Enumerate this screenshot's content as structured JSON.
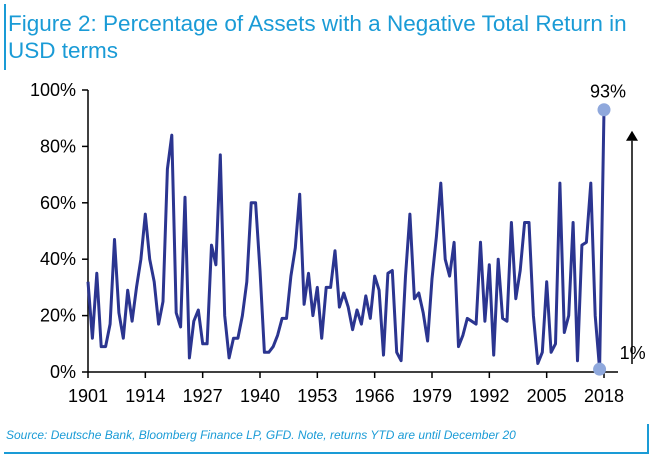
{
  "title": "Figure 2: Percentage of Assets with a Negative Total Return in USD terms",
  "source": "Source: Deutsche Bank, Bloomberg Finance LP, GFD. Note, returns YTD are until December 20",
  "colors": {
    "accent": "#1a9bd6",
    "line": "#2b3590",
    "marker": "#8fa8dc"
  },
  "chart_data": {
    "type": "line",
    "title": "Figure 2: Percentage of Assets with a Negative Total Return in USD terms",
    "xlabel": "",
    "ylabel": "",
    "xlim": [
      1901,
      2018
    ],
    "ylim": [
      0,
      100
    ],
    "x_ticks": [
      1901,
      1914,
      1927,
      1940,
      1953,
      1966,
      1979,
      1992,
      2005,
      2018
    ],
    "x_tick_labels": [
      "1901",
      "1914",
      "1927",
      "1940",
      "1953",
      "1966",
      "1979",
      "1992",
      "2005",
      "2018"
    ],
    "y_ticks": [
      0,
      20,
      40,
      60,
      80,
      100
    ],
    "y_tick_labels": [
      "0%",
      "20%",
      "40%",
      "60%",
      "80%",
      "100%"
    ],
    "grid": false,
    "series": [
      {
        "name": "",
        "x": [
          1901,
          1902,
          1903,
          1904,
          1905,
          1906,
          1907,
          1908,
          1909,
          1910,
          1911,
          1912,
          1913,
          1914,
          1915,
          1916,
          1917,
          1918,
          1919,
          1920,
          1921,
          1922,
          1923,
          1924,
          1925,
          1926,
          1927,
          1928,
          1929,
          1930,
          1931,
          1932,
          1933,
          1934,
          1935,
          1936,
          1937,
          1938,
          1939,
          1940,
          1941,
          1942,
          1943,
          1944,
          1945,
          1946,
          1947,
          1948,
          1949,
          1950,
          1951,
          1952,
          1953,
          1954,
          1955,
          1956,
          1957,
          1958,
          1959,
          1960,
          1961,
          1962,
          1963,
          1964,
          1965,
          1966,
          1967,
          1968,
          1969,
          1970,
          1971,
          1972,
          1973,
          1974,
          1975,
          1976,
          1977,
          1978,
          1979,
          1980,
          1981,
          1982,
          1983,
          1984,
          1985,
          1986,
          1987,
          1988,
          1989,
          1990,
          1991,
          1992,
          1993,
          1994,
          1995,
          1996,
          1997,
          1998,
          1999,
          2000,
          2001,
          2002,
          2003,
          2004,
          2005,
          2006,
          2007,
          2008,
          2009,
          2010,
          2011,
          2012,
          2013,
          2014,
          2015,
          2016,
          2017,
          2018
        ],
        "values": [
          32,
          12,
          35,
          9,
          9,
          17,
          47,
          21,
          12,
          29,
          18,
          30,
          40,
          56,
          40,
          32,
          17,
          25,
          72,
          84,
          21,
          16,
          62,
          5,
          18,
          22,
          10,
          10,
          45,
          38,
          77,
          20,
          5,
          12,
          12,
          20,
          32,
          60,
          60,
          36,
          7,
          7,
          9,
          13,
          19,
          19,
          34,
          44,
          63,
          24,
          35,
          20,
          30,
          12,
          30,
          30,
          43,
          23,
          28,
          23,
          15,
          22,
          17,
          27,
          19,
          34,
          29,
          6,
          35,
          36,
          7,
          4,
          34,
          56,
          26,
          28,
          21,
          11,
          33,
          48,
          67,
          40,
          34,
          46,
          9,
          13,
          19,
          18,
          17,
          46,
          18,
          38,
          6,
          40,
          19,
          18,
          53,
          26,
          36,
          53,
          53,
          20,
          3,
          7,
          32,
          7,
          10,
          67,
          14,
          20,
          53,
          4,
          45,
          46,
          67,
          20,
          1,
          93
        ]
      }
    ],
    "annotations": [
      {
        "text": "93%",
        "x": 2018,
        "y": 93
      },
      {
        "text": "1%",
        "x": 2017,
        "y": 1
      }
    ]
  }
}
